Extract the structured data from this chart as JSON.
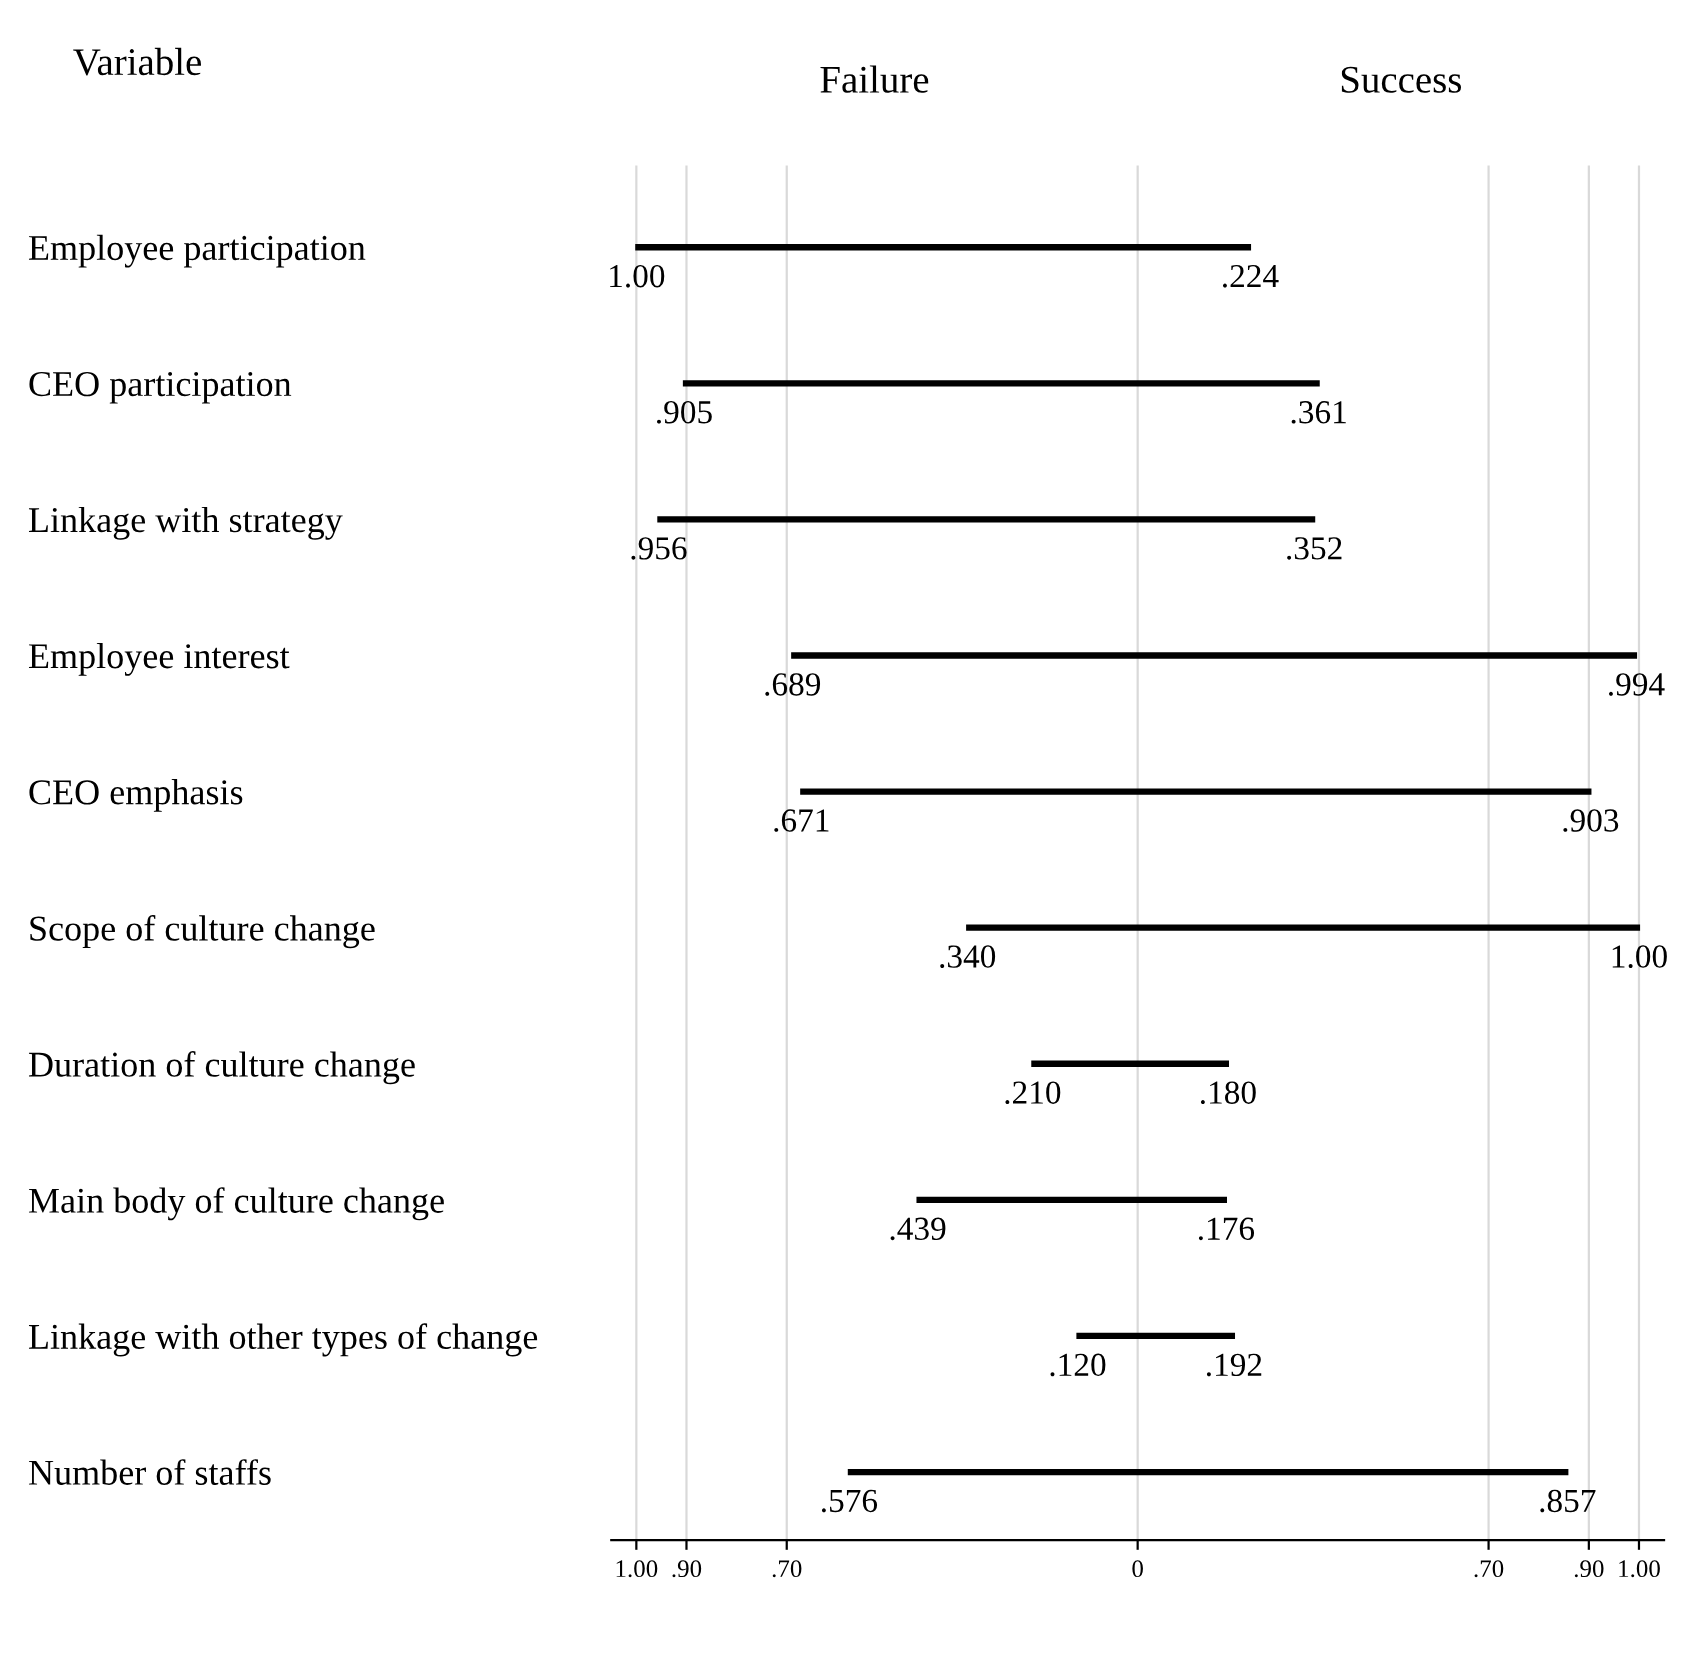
{
  "chart_data": {
    "type": "bar",
    "orientation": "horizontal",
    "ylabel": "Variable",
    "categories": [
      "Employee participation",
      "CEO participation",
      "Linkage with strategy",
      "Employee interest",
      "CEO emphasis",
      "Scope of culture change",
      "Duration of culture change",
      "Main body of culture change",
      "Linkage with other types of change",
      "Number of staffs"
    ],
    "base": [
      -1.0,
      -0.905,
      -0.956,
      -0.689,
      -0.671,
      -0.34,
      -0.21,
      -0.439,
      -0.12,
      -0.576
    ],
    "values": [
      1.224,
      1.266,
      1.308,
      1.683,
      1.574,
      1.34,
      0.39,
      0.615,
      0.312,
      1.433
    ],
    "color": "#000000",
    "xlim": [
      -1.05,
      1.05
    ],
    "xticks": [
      {
        "value": -1.0,
        "label": "1.00"
      },
      {
        "value": -0.9,
        "label": ".90"
      },
      {
        "value": -0.7,
        "label": ".70"
      },
      0,
      {
        "value": 0.7,
        "label": ".70"
      },
      {
        "value": 0.9,
        "label": ".90"
      },
      {
        "value": 1.0,
        "label": "1.00"
      }
    ],
    "grid": "x",
    "annotations": [
      "Failure",
      "Success",
      {
        "text": "1.00",
        "x": -1.0,
        "y": "Employee participation"
      },
      {
        "text": ".224",
        "x": 0.224,
        "y": "Employee participation"
      },
      {
        "text": ".905",
        "x": -0.905,
        "y": "CEO participation"
      },
      {
        "text": ".361",
        "x": 0.361,
        "y": "CEO participation"
      },
      {
        "text": ".956",
        "x": -0.956,
        "y": "Linkage with strategy"
      },
      {
        "text": ".352",
        "x": 0.352,
        "y": "Linkage with strategy"
      },
      {
        "text": ".689",
        "x": -0.689,
        "y": "Employee interest"
      },
      {
        "text": ".994",
        "x": 0.994,
        "y": "Employee interest"
      },
      {
        "text": ".671",
        "x": -0.671,
        "y": "CEO emphasis"
      },
      {
        "text": ".903",
        "x": 0.903,
        "y": "CEO emphasis"
      },
      {
        "text": ".340",
        "x": -0.34,
        "y": "Scope of culture change"
      },
      {
        "text": "1.00",
        "x": 1.0,
        "y": "Scope of culture change"
      },
      {
        "text": ".210",
        "x": -0.21,
        "y": "Duration of culture change"
      },
      {
        "text": ".180",
        "x": 0.18,
        "y": "Duration of culture change"
      },
      {
        "text": ".439",
        "x": -0.439,
        "y": "Main body of culture change"
      },
      {
        "text": ".176",
        "x": 0.176,
        "y": "Main body of culture change"
      },
      {
        "text": ".120",
        "x": -0.12,
        "y": "Linkage with other types of change"
      },
      {
        "text": ".192",
        "x": 0.192,
        "y": "Linkage with other types of change"
      },
      {
        "text": ".576",
        "x": -0.576,
        "y": "Number of staffs"
      },
      {
        "text": ".857",
        "x": 0.857,
        "y": "Number of staffs"
      }
    ]
  }
}
